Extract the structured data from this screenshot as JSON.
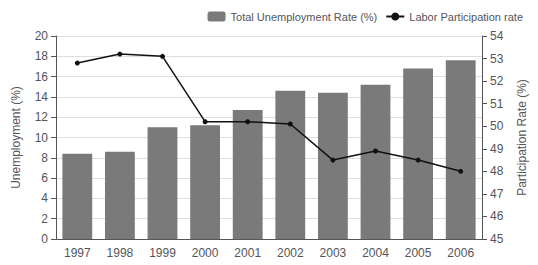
{
  "chart_data": {
    "type": "bar",
    "categories": [
      "1997",
      "1998",
      "1999",
      "2000",
      "2001",
      "2002",
      "2003",
      "2004",
      "2005",
      "2006"
    ],
    "series": [
      {
        "name": "Total Unemployment Rate (%)",
        "type": "bar",
        "color": "#7a7a7a",
        "values": [
          8.4,
          8.6,
          11.0,
          11.2,
          12.7,
          14.6,
          14.4,
          15.2,
          16.8,
          17.6
        ]
      },
      {
        "name": "Labor Participation rate",
        "type": "line",
        "color": "#111111",
        "marker": "circle",
        "axis": "y2",
        "values": [
          52.8,
          53.2,
          53.1,
          50.2,
          50.2,
          50.1,
          48.5,
          48.9,
          48.5,
          48.0
        ]
      }
    ],
    "ylabel": "Unemployment (%)",
    "y2label": "Participation Rate (%)",
    "ylim": [
      0,
      20
    ],
    "yticks": [
      0,
      2,
      4,
      6,
      8,
      10,
      12,
      14,
      16,
      18,
      20
    ],
    "y2lim": [
      45,
      54
    ],
    "y2ticks": [
      45,
      46,
      47,
      48,
      49,
      50,
      51,
      52,
      53,
      54
    ],
    "grid": true,
    "legend": "upper right"
  }
}
